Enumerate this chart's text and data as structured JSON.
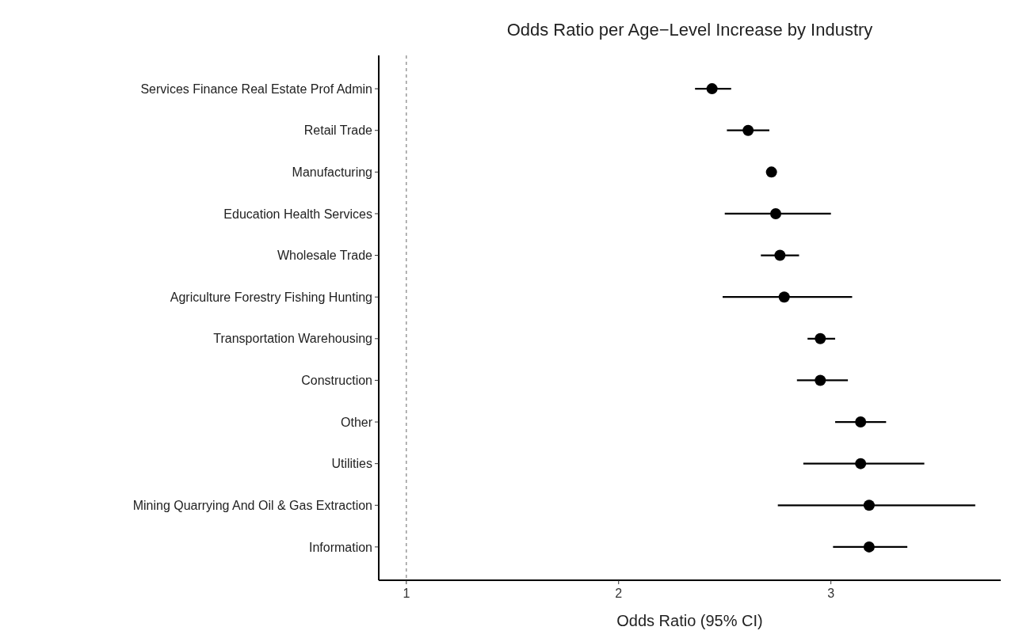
{
  "chart_data": {
    "type": "scatter",
    "orientation": "horizontal",
    "title": "Odds Ratio per Age−Level Increase by Industry",
    "xlabel": "Odds Ratio (95% CI)",
    "categories": [
      "Services Finance Real Estate Prof Admin",
      "Retail Trade",
      "Manufacturing",
      "Education Health Services",
      "Wholesale Trade",
      "Agriculture Forestry Fishing Hunting",
      "Transportation Warehousing",
      "Construction",
      "Other",
      "Utilities",
      "Mining Quarrying And Oil & Gas Extraction",
      "Information"
    ],
    "values": [
      2.44,
      2.61,
      2.72,
      2.74,
      2.76,
      2.78,
      2.95,
      2.95,
      3.14,
      3.14,
      3.18,
      3.18
    ],
    "errors": [
      [
        2.36,
        2.53
      ],
      [
        2.51,
        2.71
      ],
      null,
      [
        2.5,
        3.0
      ],
      [
        2.67,
        2.85
      ],
      [
        2.49,
        3.1
      ],
      [
        2.89,
        3.02
      ],
      [
        2.84,
        3.08
      ],
      [
        3.02,
        3.26
      ],
      [
        2.87,
        3.44
      ],
      [
        2.75,
        3.68
      ],
      [
        3.01,
        3.36
      ]
    ],
    "color": "#000000",
    "marker": "circle",
    "xlim": [
      0.87,
      3.8
    ],
    "xticks": [
      1,
      2,
      3
    ],
    "ref_lines": [
      {
        "axis": "x",
        "value": 1,
        "color": "#808080",
        "line_style": "dashed"
      }
    ],
    "grid": false
  }
}
